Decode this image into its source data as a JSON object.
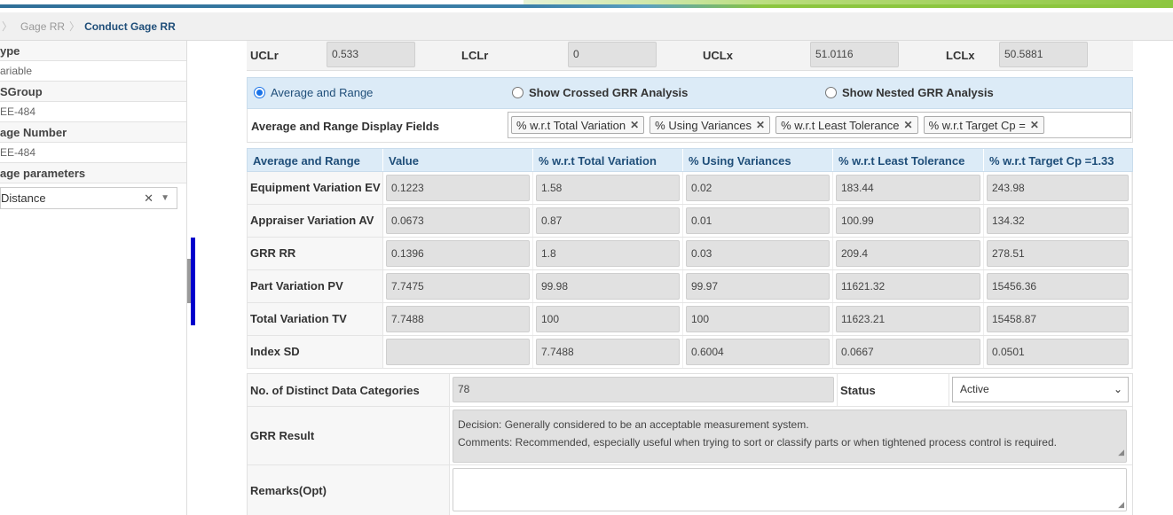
{
  "breadcrumb": {
    "items": [
      "Gage RR",
      "Conduct Gage RR"
    ]
  },
  "sidebar": {
    "fields": [
      {
        "label": "ype",
        "value": "ariable"
      },
      {
        "label": "SGroup",
        "value": "EE-484"
      },
      {
        "label": "age Number",
        "value": "EE-484"
      }
    ],
    "params_label": "age parameters",
    "params_select_value": "Distance"
  },
  "limits": {
    "uclr_label": "UCLr",
    "uclr_value": "0.533",
    "lclr_label": "LCLr",
    "lclr_value": "0",
    "uclx_label": "UCLx",
    "uclx_value": "51.0116",
    "lclx_label": "LCLx",
    "lclx_value": "50.5881"
  },
  "analysis_options": {
    "avg_range": "Average and Range",
    "crossed": "Show Crossed GRR Analysis",
    "nested": "Show Nested GRR Analysis",
    "selected": "avg_range"
  },
  "display_fields": {
    "label": "Average and Range Display Fields",
    "chips": [
      "% w.r.t Total Variation",
      "% Using Variances",
      "% w.r.t Least Tolerance",
      "% w.r.t Target Cp ="
    ]
  },
  "results": {
    "headers": [
      "Average and Range",
      "Value",
      "% w.r.t Total Variation",
      "% Using Variances",
      "% w.r.t Least Tolerance",
      "% w.r.t Target Cp =1.33"
    ],
    "rows": [
      {
        "label": "Equipment Variation EV",
        "cells": [
          "0.1223",
          "1.58",
          "0.02",
          "183.44",
          "243.98"
        ]
      },
      {
        "label": "Appraiser Variation AV",
        "cells": [
          "0.0673",
          "0.87",
          "0.01",
          "100.99",
          "134.32"
        ]
      },
      {
        "label": "GRR RR",
        "cells": [
          "0.1396",
          "1.8",
          "0.03",
          "209.4",
          "278.51"
        ]
      },
      {
        "label": "Part Variation PV",
        "cells": [
          "7.7475",
          "99.98",
          "99.97",
          "11621.32",
          "15456.36"
        ]
      },
      {
        "label": "Total Variation TV",
        "cells": [
          "7.7488",
          "100",
          "100",
          "11623.21",
          "15458.87"
        ]
      },
      {
        "label": "Index SD",
        "cells": [
          "",
          "7.7488",
          "0.6004",
          "0.0667",
          "0.0501"
        ]
      }
    ]
  },
  "summary": {
    "ndc_label": "No. of Distinct Data Categories",
    "ndc_value": "78",
    "status_label": "Status",
    "status_value": "Active",
    "grr_result_label": "GRR Result",
    "grr_decision": "Decision: Generally considered to be an acceptable measurement system.",
    "grr_comments": "Comments: Recommended, especially useful when trying to sort or classify parts or when tightened process control is required.",
    "remarks_label": "Remarks(Opt)",
    "remarks_value": ""
  },
  "colors": {
    "header_bg": "#dcebf7",
    "header_text": "#1f4e79",
    "readonly_bg": "#e1e1e1",
    "accent_blue": "#1a73e8"
  }
}
